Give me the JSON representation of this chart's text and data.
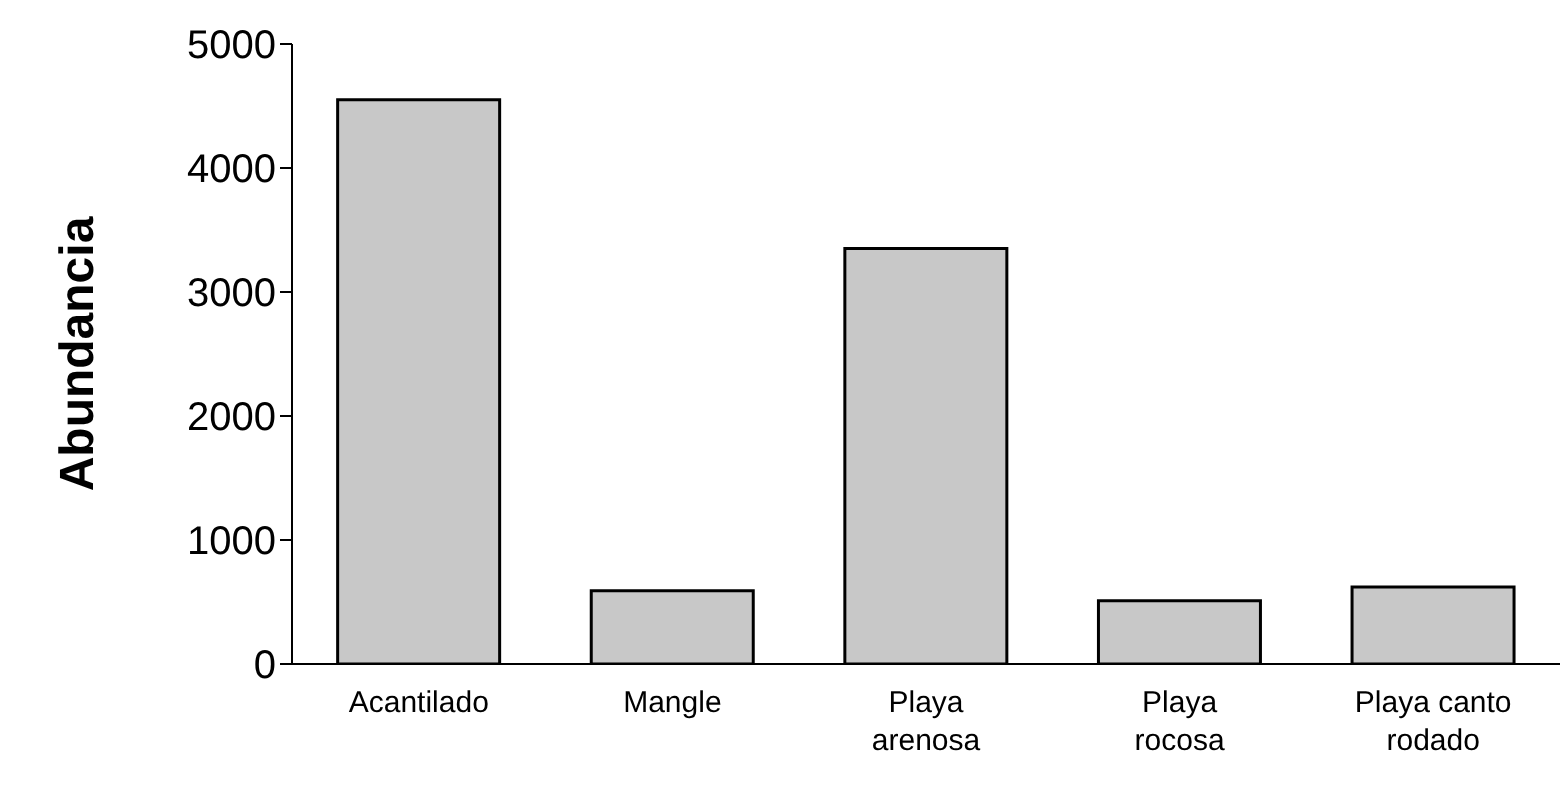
{
  "chart_data": {
    "type": "bar",
    "ylabel": "Abundancia",
    "categories": [
      "Acantilado",
      "Mangle",
      "Playa arenosa",
      "Playa rocosa",
      "Playa canto rodado"
    ],
    "values": [
      4550,
      590,
      3350,
      510,
      620
    ],
    "color": "#c8c8c8",
    "ylim": [
      0,
      5000
    ],
    "yticks": [
      0,
      1000,
      2000,
      3000,
      4000,
      5000
    ],
    "grid": false
  }
}
